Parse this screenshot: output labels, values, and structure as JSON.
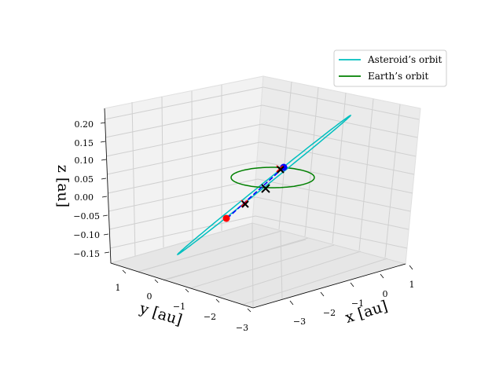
{
  "chart_data": {
    "type": "line3d",
    "xlabel": "x [au]",
    "ylabel": "y [au]",
    "zlabel": "z [au]",
    "x_ticks": [
      "−3",
      "−2",
      "−1",
      "0",
      "1"
    ],
    "y_ticks": [
      "1",
      "0",
      "−1",
      "−2",
      "−3"
    ],
    "z_ticks": [
      "0.20",
      "0.15",
      "0.10",
      "0.05",
      "0.00",
      "−0.05",
      "−0.10",
      "−0.15"
    ],
    "xlim": [
      -3.5,
      1.5
    ],
    "ylim": [
      -3.5,
      1.5
    ],
    "zlim": [
      -0.18,
      0.22
    ],
    "legend": {
      "placement": "top-right",
      "entries": [
        {
          "label": "Asteroid’s orbit",
          "color": "#00bfbf"
        },
        {
          "label": "Earth’s orbit",
          "color": "#008000"
        }
      ]
    },
    "series": [
      {
        "name": "Asteroid’s orbit",
        "color": "#00bfbf",
        "kind": "ellipse",
        "semi_major_axis": 2.2,
        "eccentricity": 0.55,
        "inclination_deg": 5.8
      },
      {
        "name": "Earth’s orbit",
        "color": "#008000",
        "kind": "circle",
        "radius": 1.0
      }
    ],
    "segment": {
      "color": "#0000ff",
      "style": "dashed"
    },
    "markers": [
      {
        "kind": "dot",
        "color": "#ff0000"
      },
      {
        "kind": "dot",
        "color": "#0000ff"
      },
      {
        "kind": "cross",
        "color": "#ff0000"
      },
      {
        "kind": "cross",
        "color": "#ff0000"
      },
      {
        "kind": "cross",
        "color": "#000000"
      },
      {
        "kind": "cross",
        "color": "#000000"
      },
      {
        "kind": "cross",
        "color": "#000000"
      }
    ],
    "grid": true
  }
}
